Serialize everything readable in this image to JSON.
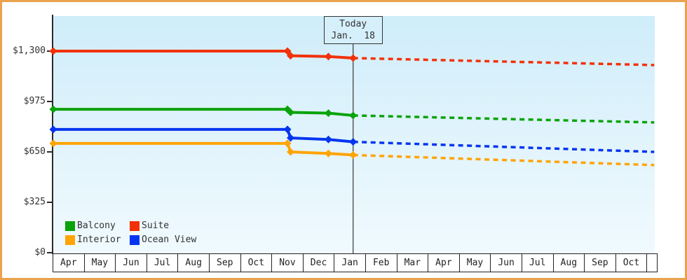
{
  "frame": {
    "border_color": "#eaa24e"
  },
  "today_marker": {
    "line1": "Today",
    "line2": "Jan.  18",
    "m": 9.59,
    "line_color": "#444444"
  },
  "y_axis": {
    "ticks": [
      {
        "label": "$0",
        "value": 0
      },
      {
        "label": "$325",
        "value": 325
      },
      {
        "label": "$650",
        "value": 650
      },
      {
        "label": "$975",
        "value": 975
      },
      {
        "label": "$1,300",
        "value": 1300
      }
    ]
  },
  "x_axis": {
    "months": [
      "Apr",
      "May",
      "Jun",
      "Jul",
      "Aug",
      "Sep",
      "Oct",
      "Nov",
      "Dec",
      "Jan",
      "Feb",
      "Mar",
      "Apr",
      "May",
      "Jun",
      "Jul",
      "Aug",
      "Sep",
      "Oct"
    ]
  },
  "legend": {
    "items": [
      {
        "name": "Balcony",
        "color": "#0aa30a"
      },
      {
        "name": "Suite",
        "color": "#f23108"
      },
      {
        "name": "Interior",
        "color": "#ffa405"
      },
      {
        "name": "Ocean View",
        "color": "#0435f0"
      }
    ]
  },
  "chart_data": {
    "type": "line",
    "x_unit": "months elapsed since first 'Apr' tick; fractional part = position within month",
    "x_months": [
      "Apr",
      "May",
      "Jun",
      "Jul",
      "Aug",
      "Sep",
      "Oct",
      "Nov",
      "Dec",
      "Jan",
      "Feb",
      "Mar",
      "Apr",
      "May",
      "Jun",
      "Jul",
      "Aug",
      "Sep",
      "Oct"
    ],
    "y_ticks": [
      0,
      325,
      650,
      975,
      1300
    ],
    "ylim": [
      0,
      1525
    ],
    "grid": false,
    "legend_position": "bottom-left inside plot",
    "today": {
      "label": "Jan. 18",
      "m": 9.59
    },
    "series": [
      {
        "name": "Suite",
        "color": "#f23108",
        "history": [
          {
            "m": 0,
            "date": "Apr (start)",
            "value": 1300
          },
          {
            "m": 7.49,
            "date": "~Nov 15",
            "value": 1300
          },
          {
            "m": 7.59,
            "date": "~Nov 18",
            "value": 1270
          },
          {
            "m": 8.8,
            "date": "~Dec 25",
            "value": 1265
          },
          {
            "m": 9.59,
            "date": "Jan 18 (today)",
            "value": 1255
          }
        ],
        "forecast": [
          {
            "m": 9.59,
            "date": "Jan 18 (today)",
            "value": 1255
          },
          {
            "m": 19.22,
            "date": "late Oct",
            "value": 1210
          }
        ]
      },
      {
        "name": "Balcony",
        "color": "#0aa30a",
        "history": [
          {
            "m": 0,
            "date": "Apr (start)",
            "value": 925
          },
          {
            "m": 7.49,
            "date": "~Nov 15",
            "value": 925
          },
          {
            "m": 7.59,
            "date": "~Nov 18",
            "value": 905
          },
          {
            "m": 8.8,
            "date": "~Dec 25",
            "value": 900
          },
          {
            "m": 9.59,
            "date": "Jan 18 (today)",
            "value": 885
          }
        ],
        "forecast": [
          {
            "m": 9.59,
            "date": "Jan 18 (today)",
            "value": 885
          },
          {
            "m": 19.22,
            "date": "late Oct",
            "value": 840
          }
        ]
      },
      {
        "name": "Ocean View",
        "color": "#0435f0",
        "history": [
          {
            "m": 0,
            "date": "Apr (start)",
            "value": 795
          },
          {
            "m": 7.49,
            "date": "~Nov 15",
            "value": 795
          },
          {
            "m": 7.59,
            "date": "~Nov 18",
            "value": 740
          },
          {
            "m": 8.8,
            "date": "~Dec 25",
            "value": 730
          },
          {
            "m": 9.59,
            "date": "Jan 18 (today)",
            "value": 715
          }
        ],
        "forecast": [
          {
            "m": 9.59,
            "date": "Jan 18 (today)",
            "value": 715
          },
          {
            "m": 19.22,
            "date": "late Oct",
            "value": 650
          }
        ]
      },
      {
        "name": "Interior",
        "color": "#ffa405",
        "history": [
          {
            "m": 0,
            "date": "Apr (start)",
            "value": 705
          },
          {
            "m": 7.49,
            "date": "~Nov 15",
            "value": 705
          },
          {
            "m": 7.59,
            "date": "~Nov 18",
            "value": 650
          },
          {
            "m": 8.8,
            "date": "~Dec 25",
            "value": 640
          },
          {
            "m": 9.59,
            "date": "Jan 18 (today)",
            "value": 630
          }
        ],
        "forecast": [
          {
            "m": 9.59,
            "date": "Jan 18 (today)",
            "value": 630
          },
          {
            "m": 19.22,
            "date": "late Oct",
            "value": 565
          }
        ]
      }
    ]
  }
}
